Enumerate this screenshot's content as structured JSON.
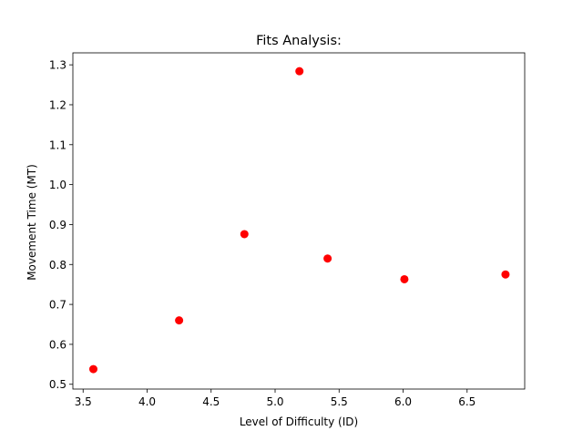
{
  "chart_data": {
    "type": "scatter",
    "title": "Fits Analysis:",
    "xlabel": "Level of Difficulty (ID)",
    "ylabel": "Movement Time (MT)",
    "xlim": [
      3.42,
      6.95
    ],
    "ylim": [
      0.488,
      1.33
    ],
    "xticks": [
      3.5,
      4.0,
      4.5,
      5.0,
      5.5,
      6.0,
      6.5
    ],
    "xtick_labels": [
      "3.5",
      "4.0",
      "4.5",
      "5.0",
      "5.5",
      "6.0",
      "6.5"
    ],
    "yticks": [
      0.5,
      0.6,
      0.7,
      0.8,
      0.9,
      1.0,
      1.1,
      1.2,
      1.3
    ],
    "ytick_labels": [
      "0.5",
      "0.6",
      "0.7",
      "0.8",
      "0.9",
      "1.0",
      "1.1",
      "1.2",
      "1.3"
    ],
    "grid": false,
    "marker_color": "#ff0000",
    "x": [
      3.58,
      4.25,
      4.76,
      5.19,
      5.41,
      6.01,
      6.8
    ],
    "y": [
      0.538,
      0.66,
      0.876,
      1.284,
      0.815,
      0.763,
      0.775
    ]
  }
}
